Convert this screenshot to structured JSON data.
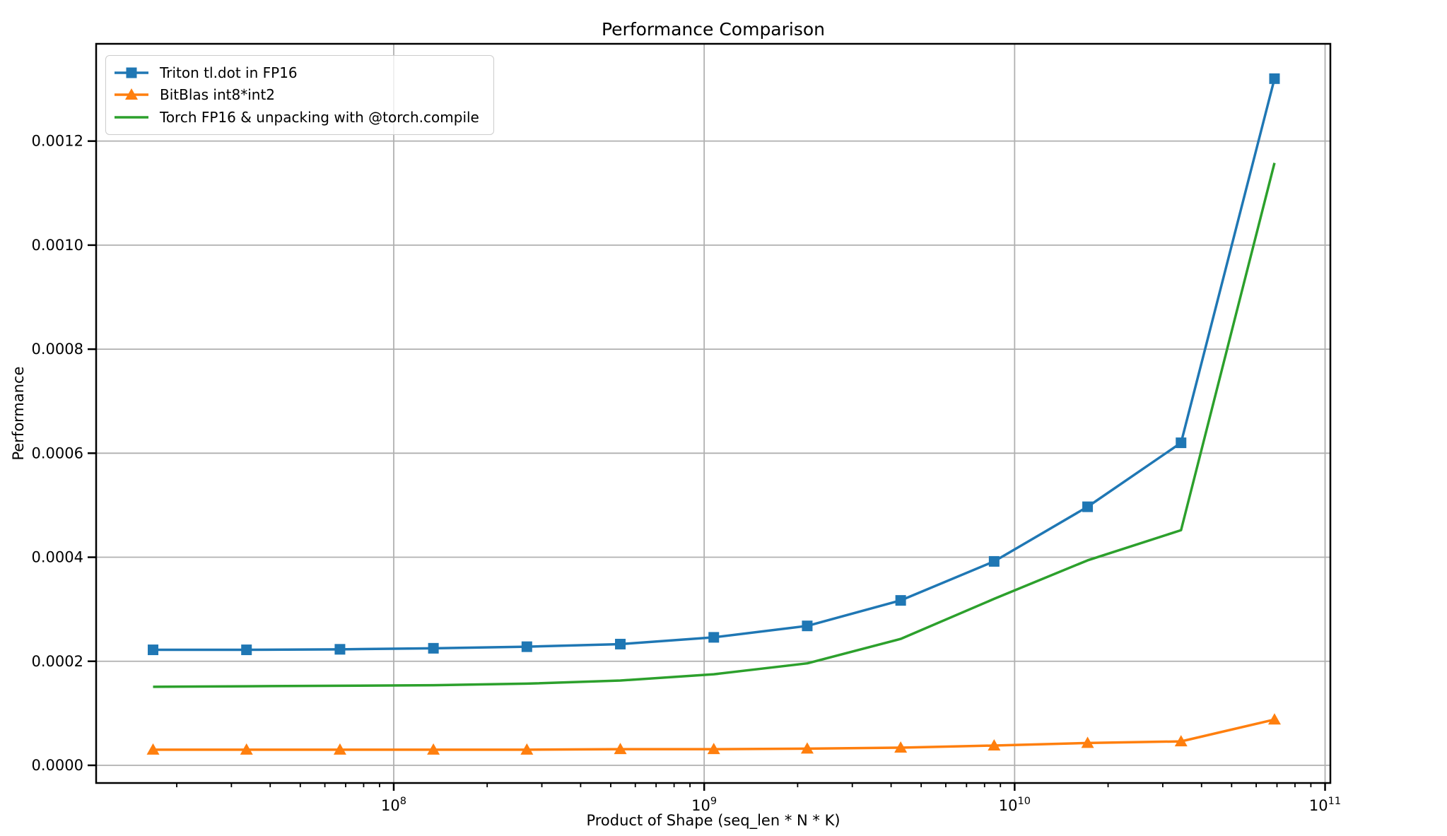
{
  "chart_data": {
    "type": "line",
    "title": "Performance Comparison",
    "xlabel": "Product of Shape (seq_len * N * K)",
    "ylabel": "Performance",
    "x_scale": "log",
    "grid": true,
    "legend_position": "upper left",
    "xlim": [
      11000000,
      104000000000
    ],
    "ylim": [
      -3.4e-05,
      0.001387
    ],
    "x": [
      16777216,
      33554432,
      67108864,
      134217728,
      268435456,
      536870912,
      1073741824,
      2147483648,
      4294967296,
      8589934592,
      17179869184,
      34359738368,
      68719476736
    ],
    "series": [
      {
        "name": "Triton tl.dot in FP16",
        "color": "#1f77b4",
        "marker": "square",
        "values": [
          0.000222,
          0.000222,
          0.000223,
          0.000225,
          0.000228,
          0.000233,
          0.000246,
          0.000268,
          0.000317,
          0.000392,
          0.000497,
          0.00062,
          0.00132
        ]
      },
      {
        "name": "BitBlas int8*int2",
        "color": "#ff7f0e",
        "marker": "triangle",
        "values": [
          3e-05,
          3e-05,
          3e-05,
          3e-05,
          3e-05,
          3.1e-05,
          3.1e-05,
          3.2e-05,
          3.4e-05,
          3.8e-05,
          4.3e-05,
          4.6e-05,
          8.8e-05
        ]
      },
      {
        "name": "Torch FP16 & unpacking with @torch.compile",
        "color": "#2ca02c",
        "marker": "none",
        "values": [
          0.000151,
          0.000152,
          0.000153,
          0.000154,
          0.000157,
          0.000163,
          0.000175,
          0.000196,
          0.000243,
          0.00032,
          0.000394,
          0.000452,
          0.001158
        ]
      }
    ],
    "y_ticks": [
      {
        "value": 0.0,
        "label": "0.0000"
      },
      {
        "value": 0.0002,
        "label": "0.0002"
      },
      {
        "value": 0.0004,
        "label": "0.0004"
      },
      {
        "value": 0.0006,
        "label": "0.0006"
      },
      {
        "value": 0.0008,
        "label": "0.0008"
      },
      {
        "value": 0.001,
        "label": "0.0010"
      },
      {
        "value": 0.0012,
        "label": "0.0012"
      }
    ],
    "x_ticks": [
      {
        "value": 100000000,
        "base": "10",
        "exp": "8"
      },
      {
        "value": 1000000000,
        "base": "10",
        "exp": "9"
      },
      {
        "value": 10000000000,
        "base": "10",
        "exp": "10"
      },
      {
        "value": 100000000000,
        "base": "10",
        "exp": "11"
      }
    ],
    "colors": {
      "grid": "#b0b0b0",
      "spine": "#000000",
      "legend_edge": "#cccccc"
    }
  }
}
